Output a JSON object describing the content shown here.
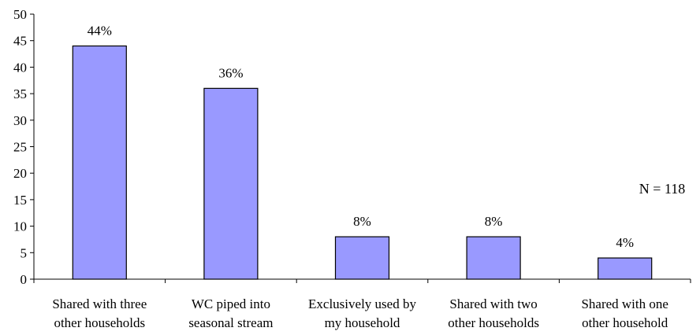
{
  "chart_data": {
    "type": "bar",
    "categories": [
      [
        "Shared with three",
        "other households"
      ],
      [
        "WC piped into",
        "seasonal stream"
      ],
      [
        "Exclusively used by",
        "my household"
      ],
      [
        "Shared with two",
        "other households"
      ],
      [
        "Shared with one",
        "other household"
      ]
    ],
    "values": [
      44,
      36,
      8,
      8,
      4
    ],
    "data_labels": [
      "44%",
      "36%",
      "8%",
      "8%",
      "4%"
    ],
    "ylim": [
      0,
      50
    ],
    "yticks": [
      0,
      5,
      10,
      15,
      20,
      25,
      30,
      35,
      40,
      45,
      50
    ],
    "annotation": "N = 118",
    "bar_color": "#9999ff",
    "bar_edge_color": "#000000",
    "grid": false,
    "legend": "none"
  }
}
